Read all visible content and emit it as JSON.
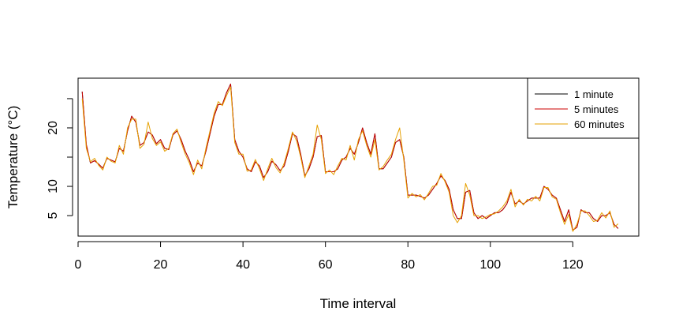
{
  "chart_data": {
    "type": "line",
    "title": "",
    "xlabel": "Time interval",
    "ylabel": "Temperature (°C)",
    "xlim": [
      0,
      136
    ],
    "ylim": [
      1.5,
      28.5
    ],
    "xticks": [
      0,
      20,
      40,
      60,
      80,
      100,
      120
    ],
    "xtick_labels": [
      "0",
      "20",
      "40",
      "60",
      "80",
      "100",
      "120"
    ],
    "yticks": [
      5,
      10,
      15,
      20,
      25
    ],
    "ytick_labels": [
      "5",
      "10",
      "",
      "20",
      ""
    ],
    "grid": false,
    "legend_position": "top-right",
    "x": [
      1,
      2,
      3,
      4,
      5,
      6,
      7,
      8,
      9,
      10,
      11,
      12,
      13,
      14,
      15,
      16,
      17,
      18,
      19,
      20,
      21,
      22,
      23,
      24,
      25,
      26,
      27,
      28,
      29,
      30,
      31,
      32,
      33,
      34,
      35,
      36,
      37,
      38,
      39,
      40,
      41,
      42,
      43,
      44,
      45,
      46,
      47,
      48,
      49,
      50,
      51,
      52,
      53,
      54,
      55,
      56,
      57,
      58,
      59,
      60,
      61,
      62,
      63,
      64,
      65,
      66,
      67,
      68,
      69,
      70,
      71,
      72,
      73,
      74,
      75,
      76,
      77,
      78,
      79,
      80,
      81,
      82,
      83,
      84,
      85,
      86,
      87,
      88,
      89,
      90,
      91,
      92,
      93,
      94,
      95,
      96,
      97,
      98,
      99,
      100,
      101,
      102,
      103,
      104,
      105,
      106,
      107,
      108,
      109,
      110,
      111,
      112,
      113,
      114,
      115,
      116,
      117,
      118,
      119,
      120,
      121,
      122,
      123,
      124,
      125,
      126,
      127,
      128,
      129,
      130,
      131
    ],
    "series": [
      {
        "name": "1 minute",
        "color": "#000000",
        "values": [
          26.2,
          17,
          14,
          14.4,
          13.8,
          13.1,
          14.8,
          14.5,
          14.2,
          16.5,
          16,
          19.5,
          22,
          21,
          17,
          17.5,
          19.3,
          18.8,
          17.3,
          18,
          16.5,
          16.3,
          18.8,
          19.5,
          18,
          16,
          14.5,
          12.5,
          14,
          13.5,
          16,
          19,
          22,
          24,
          24,
          26,
          27.5,
          18,
          16,
          15,
          13,
          12.5,
          14.2,
          13.5,
          11.5,
          12.5,
          14.3,
          13.7,
          12.7,
          13.5,
          16,
          19,
          18.5,
          15.5,
          11.8,
          13,
          15,
          18.5,
          18.7,
          12.5,
          12.5,
          12.5,
          13,
          14.5,
          15,
          16.5,
          15.5,
          17.5,
          20,
          17.5,
          15.5,
          19,
          13,
          13,
          14,
          15,
          17.5,
          18,
          15,
          8.5,
          8.5,
          8.5,
          8.3,
          8,
          8.5,
          9.5,
          10.5,
          11.8,
          11,
          9.5,
          6,
          4.5,
          4.5,
          9,
          9.3,
          5.5,
          4.5,
          5,
          4.5,
          5,
          5.5,
          5.5,
          6,
          7,
          9,
          7,
          7.5,
          7,
          7.5,
          8,
          8,
          8,
          10,
          9.5,
          8.5,
          8,
          6,
          4,
          6,
          2.5,
          3,
          6,
          5.5,
          5.5,
          4.5,
          4,
          5,
          5,
          5.5,
          3.5,
          2.8
        ]
      },
      {
        "name": "5 minutes",
        "color": "#cc0000",
        "values": [
          26.2,
          17.2,
          14,
          14.4,
          13.8,
          13.1,
          14.8,
          14.5,
          14.2,
          16.5,
          16,
          19.5,
          22,
          21,
          17,
          17.5,
          19.3,
          18.8,
          17.3,
          18,
          16.5,
          16.3,
          18.8,
          19.5,
          18,
          16,
          14.5,
          12.5,
          14,
          13.5,
          16,
          19,
          22,
          24,
          24,
          26,
          27.5,
          18,
          16,
          15,
          13,
          12.5,
          14.2,
          13.5,
          11.5,
          12.5,
          14.3,
          13.7,
          12.7,
          13.5,
          16,
          19,
          18.5,
          15.5,
          11.8,
          13,
          15,
          18.5,
          18.7,
          12.5,
          12.5,
          12.5,
          13,
          14.5,
          15,
          16.5,
          15.5,
          17.5,
          20,
          17.5,
          15.5,
          19,
          13,
          13,
          14,
          15,
          17.5,
          18,
          15,
          8.5,
          8.5,
          8.5,
          8.3,
          8,
          8.5,
          9.5,
          10.5,
          11.8,
          11,
          9.5,
          6,
          4.5,
          4.5,
          9,
          9.3,
          5.5,
          4.5,
          5,
          4.5,
          5,
          5.5,
          5.5,
          6,
          7,
          9,
          7,
          7.5,
          7,
          7.5,
          8,
          8,
          8,
          10,
          9.5,
          8.5,
          8,
          6,
          4,
          6,
          2.5,
          3,
          6,
          5.5,
          5.5,
          4.5,
          4,
          5,
          5,
          5.5,
          3.5,
          2.8
        ]
      },
      {
        "name": "60 minutes",
        "color": "#e6a000",
        "values": [
          25,
          16.5,
          14.2,
          14.8,
          13.6,
          12.8,
          15,
          14.3,
          14,
          17,
          15.5,
          20,
          21.5,
          21.5,
          16.5,
          17.2,
          21,
          18.2,
          17,
          17.6,
          16,
          16.5,
          19,
          19.8,
          17.5,
          15.5,
          14,
          12,
          14.5,
          13,
          16.5,
          19.5,
          22.5,
          24.5,
          23.8,
          25.5,
          27,
          17.5,
          15.5,
          15.5,
          12.6,
          12.8,
          14.6,
          13,
          11,
          13,
          14.8,
          13.2,
          12.3,
          14,
          16.5,
          19.3,
          17.8,
          15,
          11.5,
          13.5,
          15.5,
          20.5,
          18,
          12.2,
          12.8,
          12,
          13.5,
          14.8,
          14.5,
          17,
          14.5,
          18,
          19.5,
          17,
          15,
          18,
          12.8,
          13.4,
          14.5,
          15.5,
          18,
          20,
          14.5,
          8,
          8.8,
          8.2,
          8.6,
          7.7,
          8.8,
          10,
          10.2,
          12.2,
          10.8,
          9,
          5,
          3.8,
          5,
          10.5,
          8.5,
          5,
          5,
          4.5,
          4.8,
          5.2,
          5.3,
          5.8,
          6.5,
          7.5,
          9.5,
          6.5,
          7.8,
          6.8,
          7.8,
          7.5,
          8.3,
          7.5,
          9.8,
          9.8,
          8.2,
          7.8,
          5.5,
          3.5,
          5.2,
          2.3,
          3.5,
          5.8,
          5.8,
          5,
          4,
          4.2,
          5.5,
          4.6,
          5.8,
          3,
          3.6
        ]
      }
    ]
  }
}
